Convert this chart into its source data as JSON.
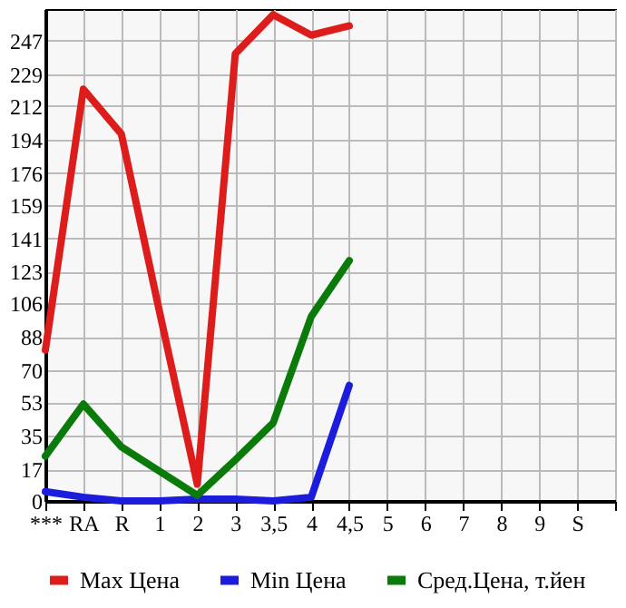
{
  "chart_data": {
    "type": "line",
    "categories": [
      "***",
      "RA",
      "R",
      "1",
      "2",
      "3",
      "3,5",
      "4",
      "4,5",
      "5",
      "6",
      "7",
      "8",
      "9",
      "S",
      null
    ],
    "series": [
      {
        "name": "Max Цена",
        "color": "#dd1c1c",
        "values": [
          81,
          221,
          197,
          102,
          9,
          240,
          261,
          250,
          255,
          null,
          null,
          null,
          null,
          null,
          null,
          null
        ]
      },
      {
        "name": "Min Цена",
        "color": "#1c1cdd",
        "values": [
          5,
          2,
          0,
          0,
          1,
          1,
          0,
          2,
          62,
          null,
          null,
          null,
          null,
          null,
          null,
          null
        ]
      },
      {
        "name": "Сред.Цена, т.йен",
        "color": "#0a7a0a",
        "values": [
          24,
          52,
          29,
          16,
          3,
          22,
          42,
          99,
          129,
          null,
          null,
          null,
          null,
          null,
          null,
          null
        ]
      }
    ],
    "ylim": [
      0,
      264
    ],
    "yticks": [
      0,
      17,
      35,
      53,
      70,
      88,
      106,
      123,
      141,
      159,
      176,
      194,
      212,
      229,
      247
    ],
    "grid": true,
    "legend": "bottom",
    "marker": "none",
    "line_style": "solid"
  }
}
